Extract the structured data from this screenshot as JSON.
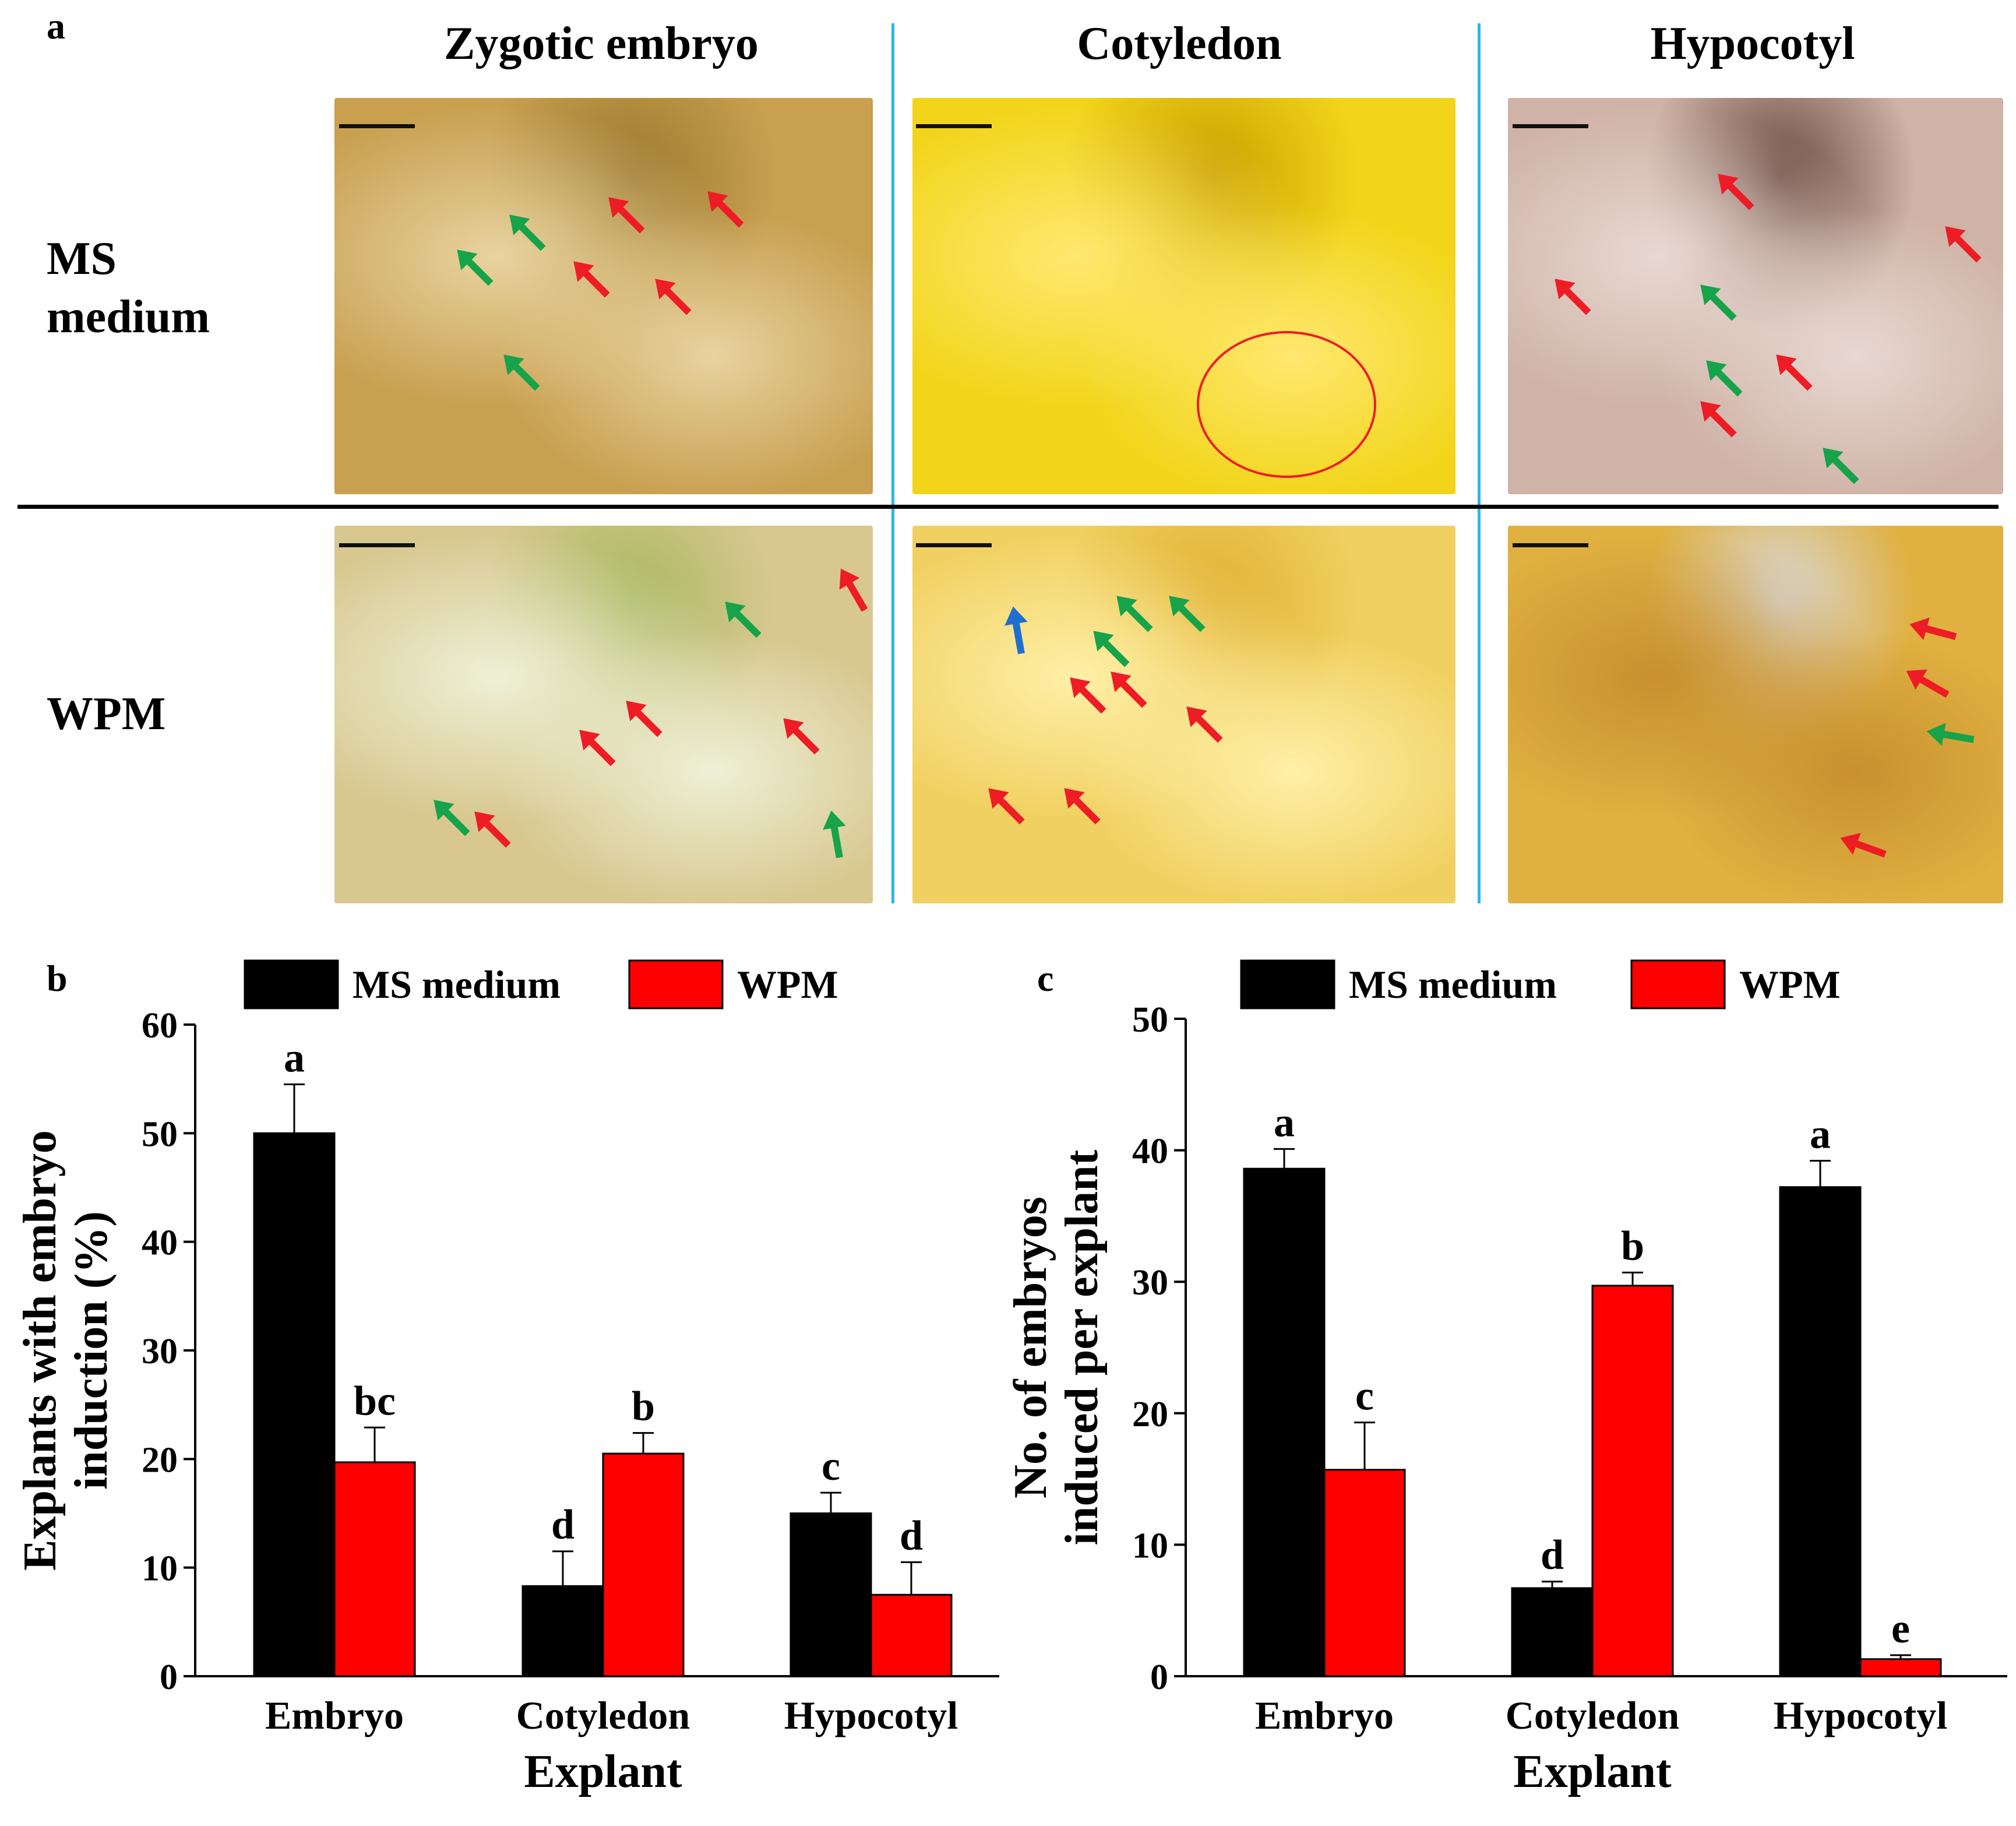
{
  "panel_a": {
    "letter": "a",
    "columns": [
      "Zygotic embryo",
      "Cotyledon",
      "Hypocotyl"
    ],
    "rows": [
      {
        "line1": "MS",
        "line2": "medium"
      },
      {
        "line1": "WPM",
        "line2": ""
      }
    ],
    "colors": {
      "divider": "#2bb5e8",
      "arrow_red": "#ee1c25",
      "arrow_green": "#16a34a",
      "arrow_blue": "#1e6fd0"
    },
    "photo_colors": {
      "ms_embryo": [
        "#c8a050",
        "#e8d3a0",
        "#9c7a30"
      ],
      "ms_cotyledon": [
        "#f2d51a",
        "#ffe870",
        "#c9a000"
      ],
      "ms_hypocotyl": [
        "#cfb3a6",
        "#e8d8d2",
        "#6a4a40"
      ],
      "wpm_embryo": [
        "#d8c890",
        "#eef0d6",
        "#a8b860"
      ],
      "wpm_cotyledon": [
        "#f0d060",
        "#fff0a8",
        "#e0b030"
      ],
      "wpm_hypocotyl": [
        "#e0b040",
        "#c89030",
        "#d8d8d8"
      ]
    }
  },
  "chart_data": [
    {
      "panel": "b",
      "type": "bar",
      "categories": [
        "Embryo",
        "Cotyledon",
        "Hypocotyl"
      ],
      "xlabel": "Explant",
      "ylabel_line1": "Explants with embryo",
      "ylabel_line2": "induction (%)",
      "ylim": [
        0,
        60
      ],
      "yticks": [
        0,
        10,
        20,
        30,
        40,
        50,
        60
      ],
      "legend": {
        "placement": "top-center",
        "entries": [
          "MS medium",
          "WPM"
        ]
      },
      "series": [
        {
          "name": "MS medium",
          "color": "#000000",
          "values": [
            50,
            8.3,
            15.0
          ],
          "errors": [
            4.5,
            3.2,
            1.9
          ],
          "letters": [
            "a",
            "d",
            "c"
          ]
        },
        {
          "name": "WPM",
          "color": "#ff0000",
          "values": [
            19.7,
            20.5,
            7.5
          ],
          "errors": [
            3.2,
            1.9,
            3.0
          ],
          "letters": [
            "bc",
            "b",
            "d"
          ]
        }
      ]
    },
    {
      "panel": "c",
      "type": "bar",
      "categories": [
        "Embryo",
        "Cotyledon",
        "Hypocotyl"
      ],
      "xlabel": "Explant",
      "ylabel_line1": "No. of embryos",
      "ylabel_line2": "induced per explant",
      "ylim": [
        0,
        50
      ],
      "yticks": [
        0,
        10,
        20,
        30,
        40,
        50
      ],
      "legend": {
        "placement": "top-center",
        "entries": [
          "MS medium",
          "WPM"
        ]
      },
      "series": [
        {
          "name": "MS medium",
          "color": "#000000",
          "values": [
            38.6,
            6.7,
            37.2
          ],
          "errors": [
            1.5,
            0.5,
            2.0
          ],
          "letters": [
            "a",
            "d",
            "a"
          ]
        },
        {
          "name": "WPM",
          "color": "#ff0000",
          "values": [
            15.7,
            29.7,
            1.3
          ],
          "errors": [
            3.6,
            1.0,
            0.3
          ],
          "letters": [
            "c",
            "b",
            "e"
          ]
        }
      ]
    }
  ]
}
